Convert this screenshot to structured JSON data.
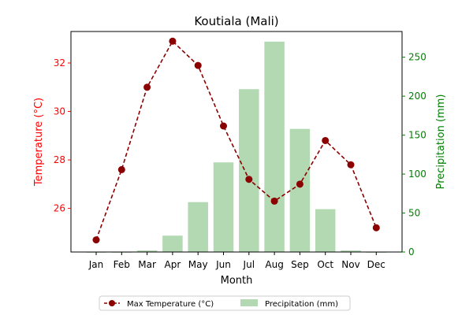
{
  "chart_data": {
    "type": "bar+line",
    "title": "Koutiala (Mali)",
    "xlabel": "Month",
    "ylabel_left": "Temperature (°C)",
    "ylabel_right": "Precipitation (mm)",
    "categories": [
      "Jan",
      "Feb",
      "Mar",
      "Apr",
      "May",
      "Jun",
      "Jul",
      "Aug",
      "Sep",
      "Oct",
      "Nov",
      "Dec"
    ],
    "ylim_left": [
      24.2,
      33.3
    ],
    "ylim_right": [
      0,
      283
    ],
    "yticks_left": [
      26,
      28,
      30,
      32
    ],
    "yticks_right": [
      0,
      50,
      100,
      150,
      200,
      250
    ],
    "series": [
      {
        "name": "Max Temperature (°C)",
        "kind": "line",
        "axis": "left",
        "values": [
          24.7,
          27.6,
          31.0,
          32.9,
          31.9,
          29.4,
          27.2,
          26.3,
          27.0,
          28.8,
          27.8,
          25.2
        ]
      },
      {
        "name": "Precipitation (mm)",
        "kind": "bar",
        "axis": "right",
        "values": [
          0,
          0,
          2,
          21,
          64,
          115,
          209,
          270,
          158,
          55,
          2,
          0
        ]
      }
    ],
    "legend_placement": "bottom-center",
    "colors": {
      "line": "#8b0000",
      "bar": "#b2d9b2",
      "left_axis": "#ff0000",
      "right_axis": "#008000"
    }
  }
}
